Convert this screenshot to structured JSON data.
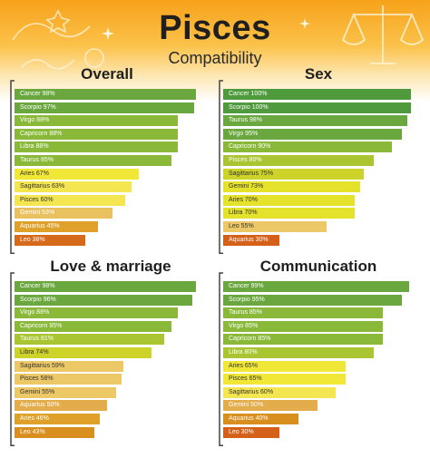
{
  "header": {
    "title": "Pisces",
    "subtitle": "Compatibility"
  },
  "chart_data": [
    {
      "type": "bar",
      "title": "Overall",
      "categories": [
        "Cancer",
        "Scorpio",
        "Virgo",
        "Capricorn",
        "Libra",
        "Taurus",
        "Aries",
        "Sagittarius",
        "Pisces",
        "Gemini",
        "Aquarius",
        "Leo"
      ],
      "values": [
        98,
        97,
        88,
        88,
        88,
        85,
        67,
        63,
        60,
        53,
        45,
        38
      ],
      "xlim": [
        0,
        100
      ]
    },
    {
      "type": "bar",
      "title": "Sex",
      "categories": [
        "Cancer",
        "Scorpio",
        "Taurus",
        "Virgo",
        "Capricorn",
        "Pisces",
        "Sagittarius",
        "Gemini",
        "Aries",
        "Libra",
        "Leo",
        "Aquarius"
      ],
      "values": [
        100,
        100,
        98,
        95,
        90,
        80,
        75,
        73,
        70,
        70,
        55,
        30
      ],
      "xlim": [
        0,
        100
      ]
    },
    {
      "type": "bar",
      "title": "Love & marriage",
      "categories": [
        "Cancer",
        "Scorpio",
        "Virgo",
        "Capricorn",
        "Taurus",
        "Libra",
        "Sagittarius",
        "Pisces",
        "Gemini",
        "Aquarius",
        "Aries",
        "Leo"
      ],
      "values": [
        98,
        96,
        88,
        85,
        81,
        74,
        59,
        58,
        55,
        50,
        46,
        43
      ],
      "xlim": [
        0,
        100
      ]
    },
    {
      "type": "bar",
      "title": "Communication",
      "categories": [
        "Cancer",
        "Scorpio",
        "Taurus",
        "Virgo",
        "Capricorn",
        "Libra",
        "Aries",
        "Pisces",
        "Sagittarius",
        "Gemini",
        "Aquarius",
        "Leo"
      ],
      "values": [
        99,
        95,
        85,
        85,
        85,
        80,
        65,
        65,
        60,
        50,
        40,
        30
      ],
      "xlim": [
        0,
        100
      ]
    }
  ],
  "colors": {
    "header_top": "#f7a21a",
    "header_bottom": "#fde7b4",
    "bracket": "#444444",
    "bar_scale": [
      {
        "min": 100,
        "color": "#4f9a3c"
      },
      {
        "min": 95,
        "color": "#6aa73e"
      },
      {
        "min": 85,
        "color": "#8ab939"
      },
      {
        "min": 80,
        "color": "#a9c531"
      },
      {
        "min": 74,
        "color": "#cdd329"
      },
      {
        "min": 70,
        "color": "#e4e22b"
      },
      {
        "min": 65,
        "color": "#f0e737"
      },
      {
        "min": 60,
        "color": "#f3e650"
      },
      {
        "min": 55,
        "color": "#edc866"
      },
      {
        "min": 53,
        "color": "#e9c15f"
      },
      {
        "min": 50,
        "color": "#e4ad4b"
      },
      {
        "min": 45,
        "color": "#dfa12a"
      },
      {
        "min": 40,
        "color": "#d98f1e"
      },
      {
        "min": 38,
        "color": "#d66a1b"
      },
      {
        "min": 0,
        "color": "#d4601a"
      }
    ]
  }
}
